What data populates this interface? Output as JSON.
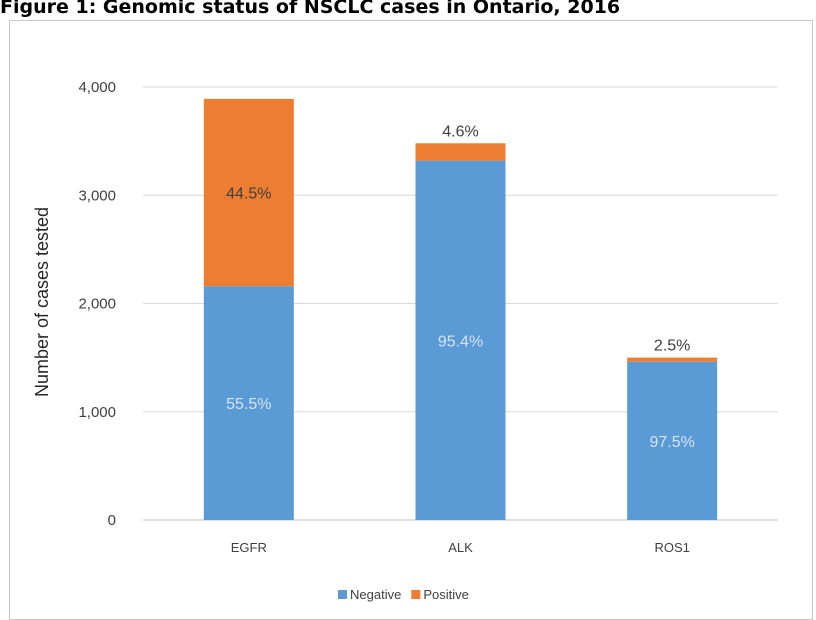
{
  "caption": "Figure 1: Genomic status of NSCLC cases in Ontario, 2016",
  "chart_data": {
    "type": "bar",
    "stacked": true,
    "categories": [
      "EGFR",
      "ALK",
      "ROS1"
    ],
    "series": [
      {
        "name": "Negative",
        "color": "#5b9bd5",
        "values": [
          2160,
          3320,
          1462
        ],
        "labels": [
          "55.5%",
          "95.4%",
          "97.5%"
        ]
      },
      {
        "name": "Positive",
        "color": "#ed7d31",
        "values": [
          1730,
          160,
          38
        ],
        "labels": [
          "44.5%",
          "4.6%",
          "2.5%"
        ]
      }
    ],
    "ylabel": "Number of cases tested",
    "ylim": [
      0,
      4000
    ],
    "yticks": [
      "0",
      "1,000",
      "2,000",
      "3,000",
      "4,000"
    ],
    "grid": true,
    "legend_position": "bottom"
  }
}
